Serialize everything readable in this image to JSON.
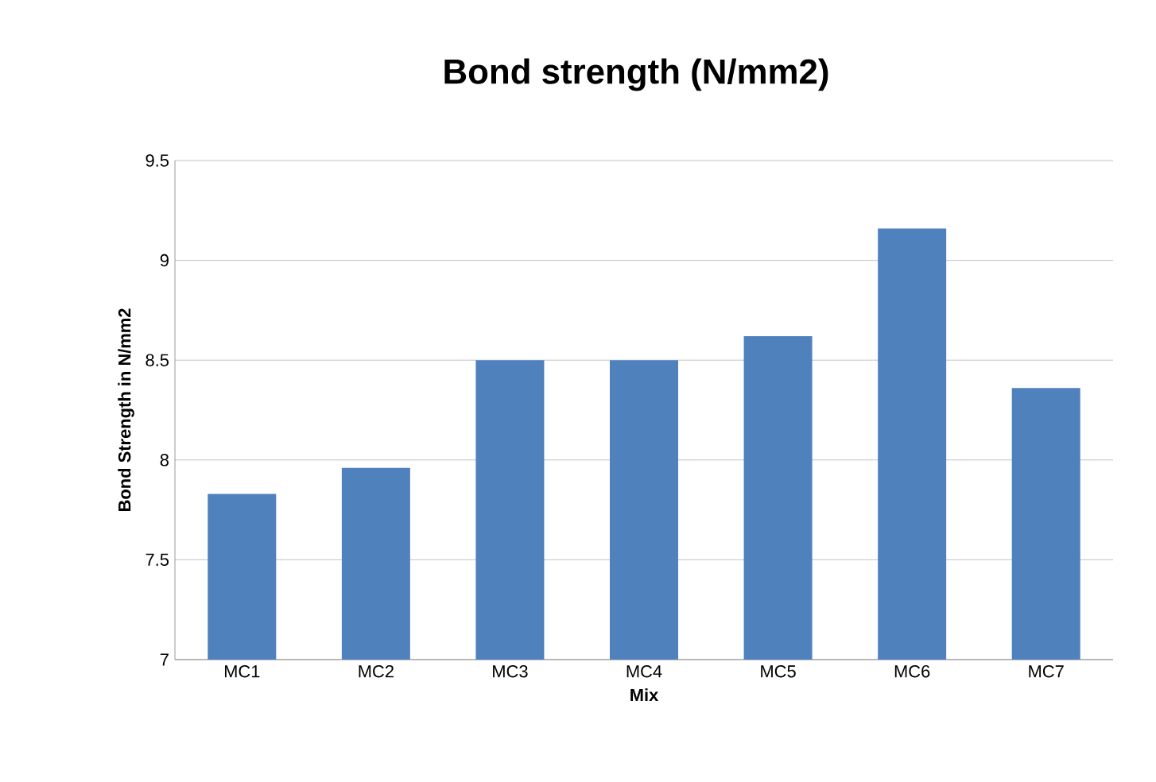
{
  "chart_data": {
    "type": "bar",
    "title": "Bond strength (N/mm2)",
    "xlabel": "Mix",
    "ylabel": "Bond Strength  in N/mm2",
    "categories": [
      "MC1",
      "MC2",
      "MC3",
      "MC4",
      "MC5",
      "MC6",
      "MC7"
    ],
    "values": [
      7.83,
      7.96,
      8.5,
      8.5,
      8.62,
      9.16,
      8.36
    ],
    "color": "#4f81bd",
    "ylim": [
      7,
      9.5
    ],
    "yticks": [
      7,
      7.5,
      8,
      8.5,
      9,
      9.5
    ],
    "grid": "y"
  }
}
